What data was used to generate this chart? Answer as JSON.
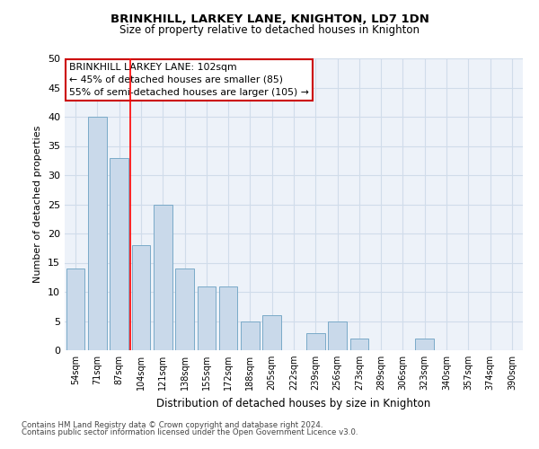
{
  "title": "BRINKHILL, LARKEY LANE, KNIGHTON, LD7 1DN",
  "subtitle": "Size of property relative to detached houses in Knighton",
  "xlabel": "Distribution of detached houses by size in Knighton",
  "ylabel": "Number of detached properties",
  "categories": [
    "54sqm",
    "71sqm",
    "87sqm",
    "104sqm",
    "121sqm",
    "138sqm",
    "155sqm",
    "172sqm",
    "188sqm",
    "205sqm",
    "222sqm",
    "239sqm",
    "256sqm",
    "273sqm",
    "289sqm",
    "306sqm",
    "323sqm",
    "340sqm",
    "357sqm",
    "374sqm",
    "390sqm"
  ],
  "values": [
    14,
    40,
    33,
    18,
    25,
    14,
    11,
    11,
    5,
    6,
    0,
    3,
    5,
    2,
    0,
    0,
    2,
    0,
    0,
    0,
    0
  ],
  "bar_color": "#c9d9ea",
  "bar_edge_color": "#7aaac8",
  "ylim": [
    0,
    50
  ],
  "yticks": [
    0,
    5,
    10,
    15,
    20,
    25,
    30,
    35,
    40,
    45,
    50
  ],
  "property_line_x": 2.5,
  "annotation_title": "BRINKHILL LARKEY LANE: 102sqm",
  "annotation_line1": "← 45% of detached houses are smaller (85)",
  "annotation_line2": "55% of semi-detached houses are larger (105) →",
  "annotation_box_color": "#ffffff",
  "annotation_box_edge": "#cc0000",
  "footnote1": "Contains HM Land Registry data © Crown copyright and database right 2024.",
  "footnote2": "Contains public sector information licensed under the Open Government Licence v3.0.",
  "grid_color": "#d0dcea",
  "background_color": "#edf2f9"
}
